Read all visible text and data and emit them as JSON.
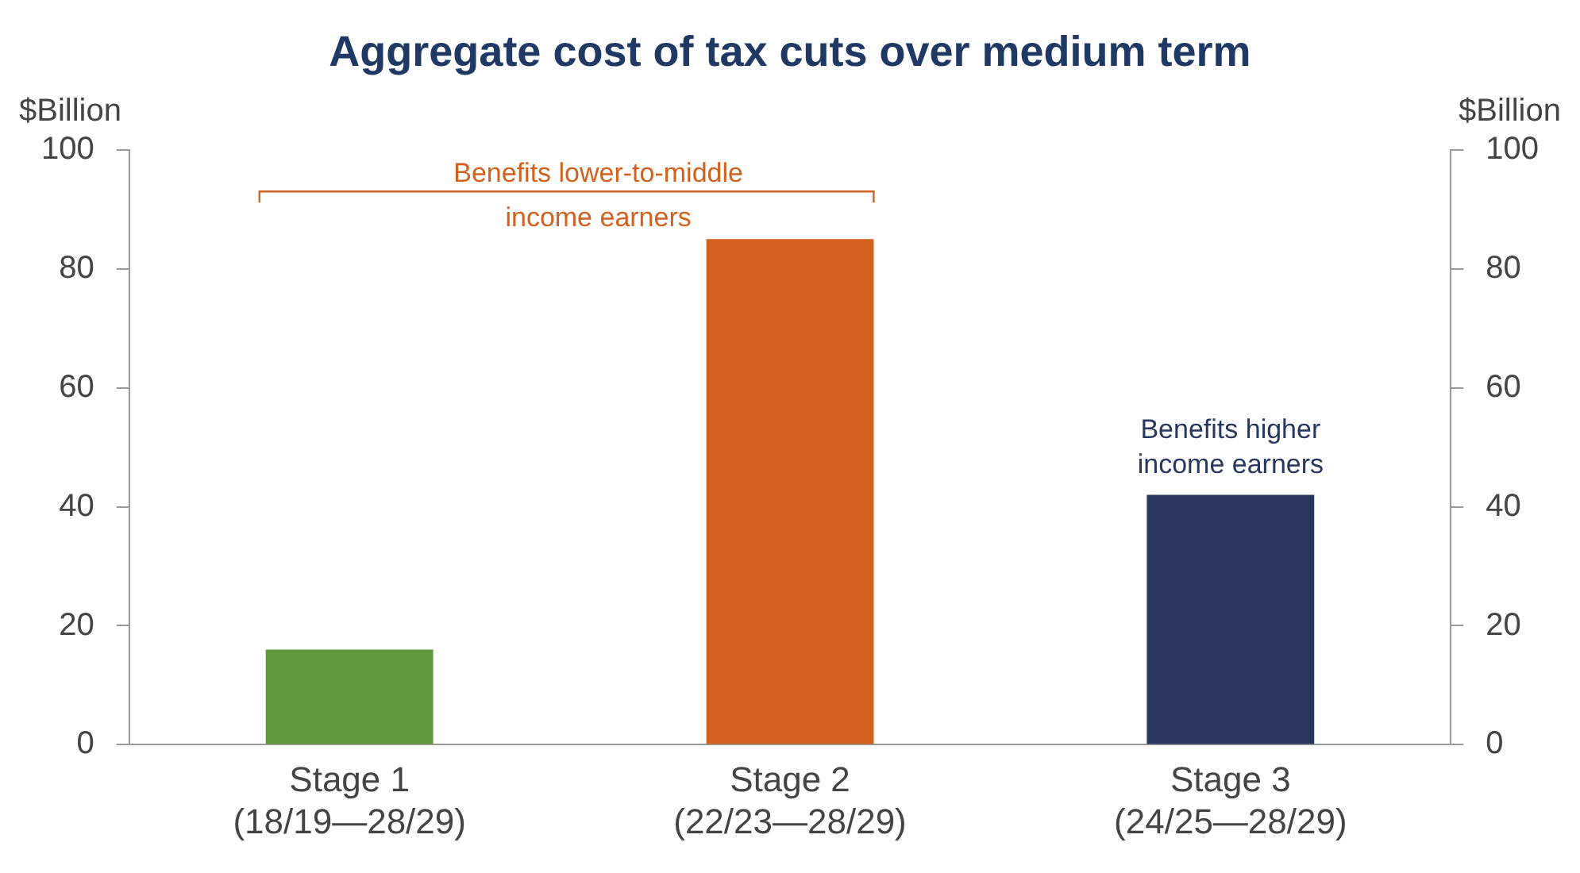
{
  "chart_data": {
    "type": "bar",
    "title": "Aggregate cost of tax cuts over medium term",
    "ylabel": "$Billion",
    "y2label": "$Billion",
    "categories": [
      "Stage 1\n(18/19—28/29)",
      "Stage 2\n(22/23—28/29)",
      "Stage 3\n(24/25—28/29)"
    ],
    "values": [
      16,
      85,
      42
    ],
    "colors": [
      "#5e9a3a",
      "#d2611f",
      "#27375e"
    ],
    "ylim": [
      0,
      100
    ],
    "yticks": [
      0,
      20,
      40,
      60,
      80,
      100
    ],
    "y2lim": [
      0,
      100
    ],
    "y2ticks": [
      0,
      20,
      40,
      60,
      80,
      100
    ],
    "grid": false,
    "legend": false,
    "annotations": [
      "Benefits lower-to-middle\nincome earners",
      "Benefits higher\nincome earners"
    ]
  }
}
